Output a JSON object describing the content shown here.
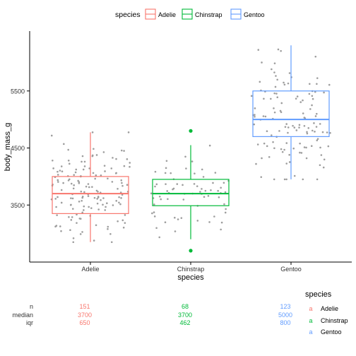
{
  "chart_data": {
    "type": "boxplot",
    "xlabel": "species",
    "ylabel": "body_mass_g",
    "ylim": [
      2500,
      6550
    ],
    "y_ticks": [
      3500,
      4500,
      5500
    ],
    "y_tick_labels": [
      "3500",
      "4500",
      "5500"
    ],
    "grid": false,
    "legend": {
      "title": "species",
      "position": "top",
      "entries": [
        "Adelie",
        "Chinstrap",
        "Gentoo"
      ]
    },
    "categories": [
      "Adelie",
      "Chinstrap",
      "Gentoo"
    ],
    "colors": [
      "#F8766D",
      "#00BA38",
      "#619CFF"
    ],
    "point_color": "#9e9e9e",
    "series": [
      {
        "name": "Adelie",
        "box": {
          "whisker_low": 2850,
          "q1": 3350,
          "median": 3700,
          "q3": 4000,
          "whisker_high": 4775
        },
        "outliers": [],
        "points_count": 151,
        "points_range": [
          2850,
          4775
        ]
      },
      {
        "name": "Chinstrap",
        "box": {
          "whisker_low": 2900,
          "q1": 3488,
          "median": 3700,
          "q3": 3950,
          "whisker_high": 4550
        },
        "outliers": [
          2700,
          4800
        ],
        "points_count": 68,
        "points_range": [
          2700,
          4800
        ]
      },
      {
        "name": "Gentoo",
        "box": {
          "whisker_low": 3950,
          "q1": 4700,
          "median": 5000,
          "q3": 5500,
          "whisker_high": 6300
        },
        "outliers": [],
        "points_count": 123,
        "points_range": [
          3950,
          6300
        ]
      }
    ],
    "stats_table": {
      "row_labels": [
        "n",
        "median",
        "iqr"
      ],
      "columns": [
        {
          "name": "Adelie",
          "values": [
            "151",
            "3700",
            "650"
          ]
        },
        {
          "name": "Chinstrap",
          "values": [
            "68",
            "3700",
            "462"
          ]
        },
        {
          "name": "Gentoo",
          "values": [
            "123",
            "5000",
            "800"
          ]
        }
      ]
    },
    "side_legend": {
      "title": "species",
      "glyph": "a",
      "entries": [
        "Adelie",
        "Chinstrap",
        "Gentoo"
      ]
    }
  }
}
